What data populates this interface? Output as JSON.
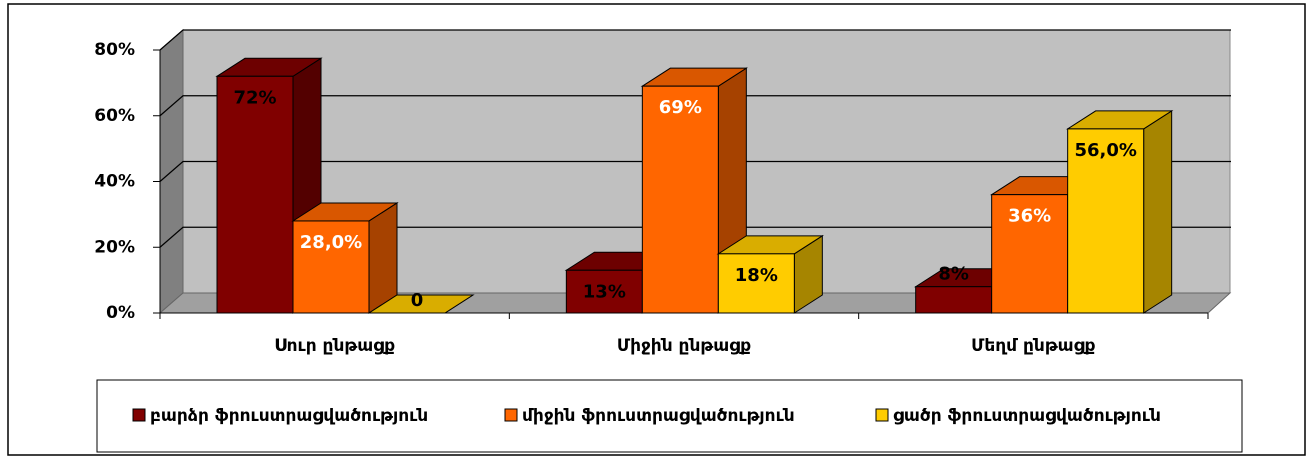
{
  "chart_data": {
    "type": "bar3d",
    "categories": [
      "Սուր ընթացք",
      "Միջին ընթացք",
      "Մեղմ ընթացք"
    ],
    "series": [
      {
        "name": "բարձր ֆրուստրացվածություն",
        "color": "#800000",
        "values": [
          72,
          13,
          8
        ],
        "value_labels": [
          "72%",
          "13%",
          "8%"
        ]
      },
      {
        "name": "միջին ֆրուստրացվածություն",
        "color": "#ff6600",
        "values": [
          28,
          69,
          36
        ],
        "value_labels": [
          "28,0%",
          "69%",
          "36%"
        ]
      },
      {
        "name": "ցածր ֆրուստրացվածություն",
        "color": "#ffcc00",
        "values": [
          0,
          18,
          56
        ],
        "value_labels": [
          "0",
          "18%",
          "56,0%"
        ]
      }
    ],
    "ylim": [
      0,
      80
    ],
    "yticks": [
      {
        "value": 0,
        "label": "0%"
      },
      {
        "value": 20,
        "label": "20%"
      },
      {
        "value": 40,
        "label": "40%"
      },
      {
        "value": 60,
        "label": "60%"
      },
      {
        "value": 80,
        "label": "80%"
      }
    ],
    "grid": true,
    "legend": "bottom"
  }
}
